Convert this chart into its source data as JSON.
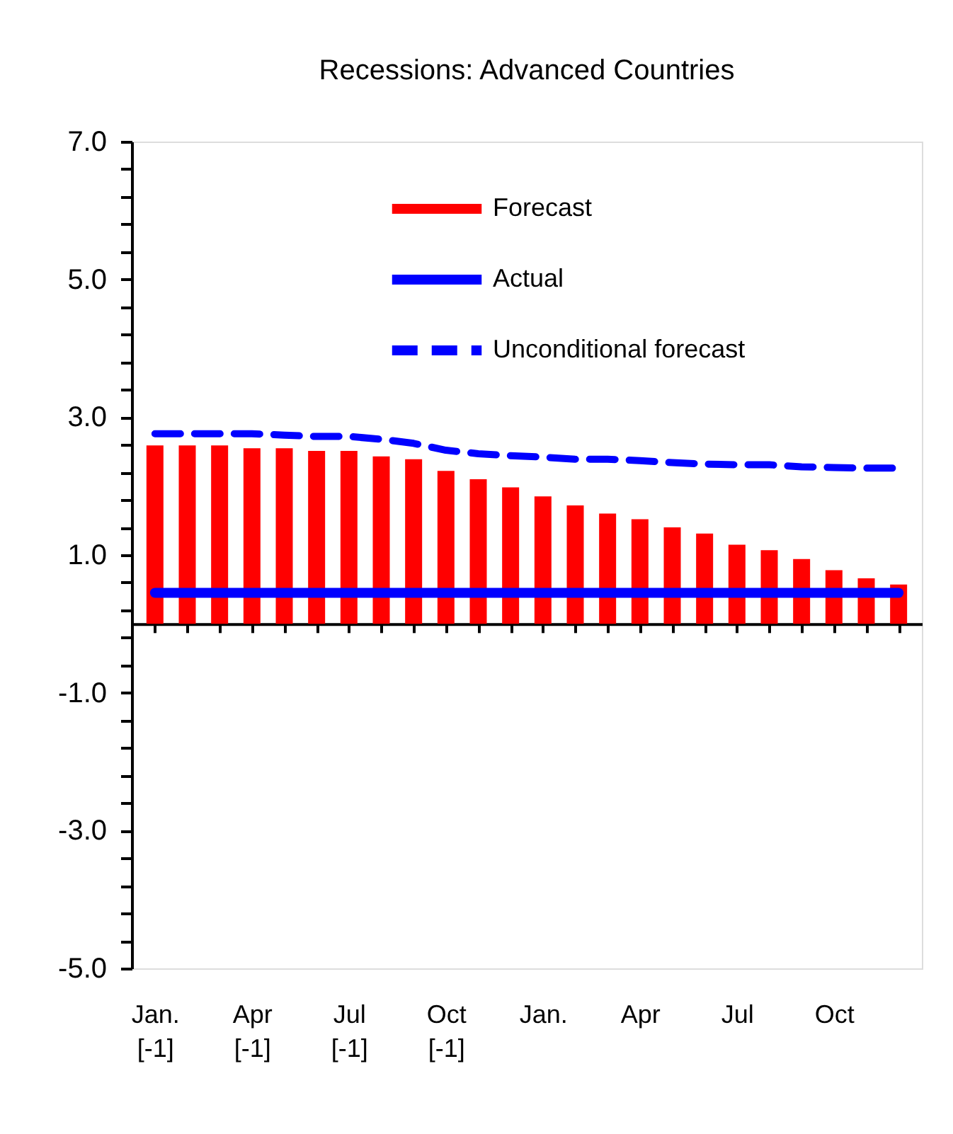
{
  "chart_data": {
    "type": "bar",
    "title": "Recessions: Advanced Countries",
    "categories": [
      "Jan. [-1]",
      null,
      null,
      "Apr [-1]",
      null,
      null,
      "Jul [-1]",
      null,
      null,
      "Oct [-1]",
      null,
      null,
      "Jan.",
      null,
      null,
      "Apr",
      null,
      null,
      "Jul",
      null,
      null,
      "Oct",
      null,
      null
    ],
    "series": [
      {
        "name": "Forecast",
        "color": "#ff0000",
        "values": [
          2.59,
          2.59,
          2.59,
          2.55,
          2.55,
          2.51,
          2.51,
          2.43,
          2.39,
          2.22,
          2.1,
          1.98,
          1.85,
          1.72,
          1.6,
          1.52,
          1.4,
          1.31,
          1.15,
          1.07,
          0.94,
          0.78,
          0.66,
          0.57
        ]
      },
      {
        "name": "Actual",
        "type": "line",
        "line_style": "solid",
        "color": "#0000ff",
        "values": [
          0.45,
          0.45,
          0.45,
          0.45,
          0.45,
          0.45,
          0.45,
          0.45,
          0.45,
          0.45,
          0.45,
          0.45,
          0.45,
          0.45,
          0.45,
          0.45,
          0.45,
          0.45,
          0.45,
          0.45,
          0.45,
          0.45,
          0.45,
          0.45
        ]
      },
      {
        "name": "Unconditional forecast",
        "type": "line",
        "line_style": "dashed",
        "color": "#0000ff",
        "values": [
          2.76,
          2.76,
          2.76,
          2.76,
          2.74,
          2.72,
          2.72,
          2.68,
          2.62,
          2.52,
          2.47,
          2.44,
          2.42,
          2.39,
          2.39,
          2.37,
          2.34,
          2.32,
          2.31,
          2.31,
          2.28,
          2.27,
          2.26,
          2.26
        ]
      }
    ],
    "ylim": [
      -5,
      7
    ],
    "yticks": [
      {
        "value": 7,
        "label": "7.0"
      },
      {
        "value": 6.6,
        "label": null
      },
      {
        "value": 6.2,
        "label": null
      },
      {
        "value": 5.8,
        "label": null
      },
      {
        "value": 5.4,
        "label": null
      },
      {
        "value": 5,
        "label": "5.0"
      },
      {
        "value": 4.6,
        "label": null
      },
      {
        "value": 4.2,
        "label": null
      },
      {
        "value": 3.8,
        "label": null
      },
      {
        "value": 3.4,
        "label": null
      },
      {
        "value": 3,
        "label": "3.0"
      },
      {
        "value": 2.6,
        "label": null
      },
      {
        "value": 2.2,
        "label": null
      },
      {
        "value": 1.8,
        "label": null
      },
      {
        "value": 1.4,
        "label": null
      },
      {
        "value": 1,
        "label": "1.0"
      },
      {
        "value": 0.6,
        "label": null
      },
      {
        "value": 0.2,
        "label": null
      },
      {
        "value": -0.2,
        "label": null
      },
      {
        "value": -0.6,
        "label": null
      },
      {
        "value": -1,
        "label": "-1.0"
      },
      {
        "value": -1.4,
        "label": null
      },
      {
        "value": -1.8,
        "label": null
      },
      {
        "value": -2.2,
        "label": null
      },
      {
        "value": -2.6,
        "label": null
      },
      {
        "value": -3,
        "label": "-3.0"
      },
      {
        "value": -3.4,
        "label": null
      },
      {
        "value": -3.8,
        "label": null
      },
      {
        "value": -4.2,
        "label": null
      },
      {
        "value": -4.6,
        "label": null
      },
      {
        "value": -5,
        "label": "-5.0"
      }
    ],
    "grid": false,
    "legend": "top",
    "marker": "none"
  }
}
